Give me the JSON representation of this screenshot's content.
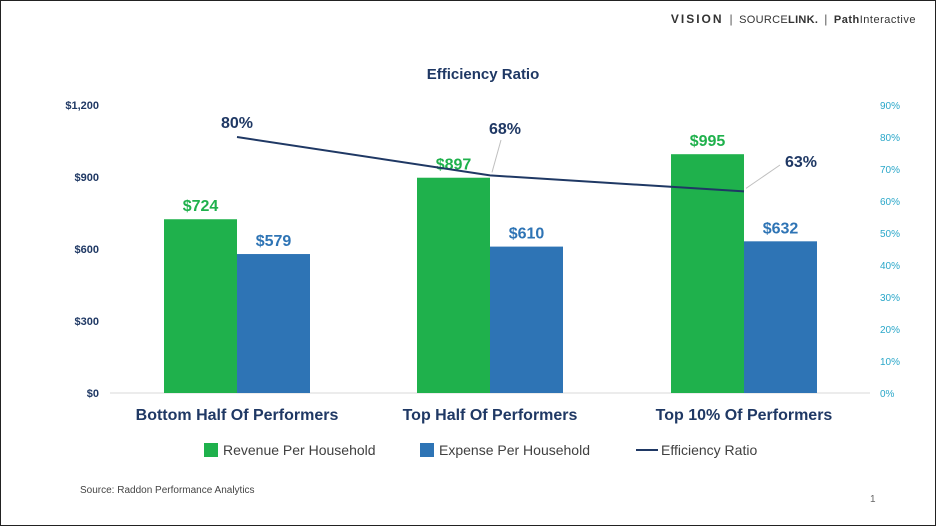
{
  "brand": {
    "vision": "VISION",
    "separator": "|",
    "sourcelink_a": "SOURCE",
    "sourcelink_b": "LINK.",
    "path_a": "Path",
    "path_b": "Interactive"
  },
  "colors": {
    "revenue": "#1fb14c",
    "expense": "#2e74b5",
    "ratio_line": "#1f3864",
    "revenue_label": "#1fb14c",
    "expense_label": "#2e74b5",
    "ratio_label": "#1f3864",
    "left_axis": "#1f3864",
    "right_axis": "#2aa7c9"
  },
  "chart_data": {
    "type": "bar",
    "title": "Efficiency Ratio",
    "categories": [
      "Bottom Half Of Performers",
      "Top Half  Of Performers",
      "Top 10% Of Performers"
    ],
    "series": [
      {
        "name": "Revenue Per Household",
        "kind": "bar",
        "values": [
          724,
          897,
          995
        ],
        "labels": [
          "$724",
          "$897",
          "$995"
        ]
      },
      {
        "name": "Expense Per Household",
        "kind": "bar",
        "values": [
          579,
          610,
          632
        ],
        "labels": [
          "$579",
          "$610",
          "$632"
        ]
      },
      {
        "name": "Efficiency Ratio",
        "kind": "line",
        "axis": "secondary",
        "values": [
          80,
          68,
          63
        ],
        "labels": [
          "80%",
          "68%",
          "63%"
        ]
      }
    ],
    "y_axis": {
      "ylim": [
        0,
        1200
      ],
      "ticks": [
        0,
        300,
        600,
        900,
        1200
      ],
      "tick_labels": [
        "$0",
        "$300",
        "$600",
        "$900",
        "$1,200"
      ]
    },
    "y2_axis": {
      "ylim": [
        0,
        90
      ],
      "ticks": [
        0,
        10,
        20,
        30,
        40,
        50,
        60,
        70,
        80,
        90
      ],
      "tick_labels": [
        "0%",
        "10%",
        "20%",
        "30%",
        "40%",
        "50%",
        "60%",
        "70%",
        "80%",
        "90%"
      ]
    },
    "legend_position": "bottom-center",
    "grid": false
  },
  "footer": {
    "source": "Source: Raddon Performance Analytics",
    "page_number": "1"
  }
}
